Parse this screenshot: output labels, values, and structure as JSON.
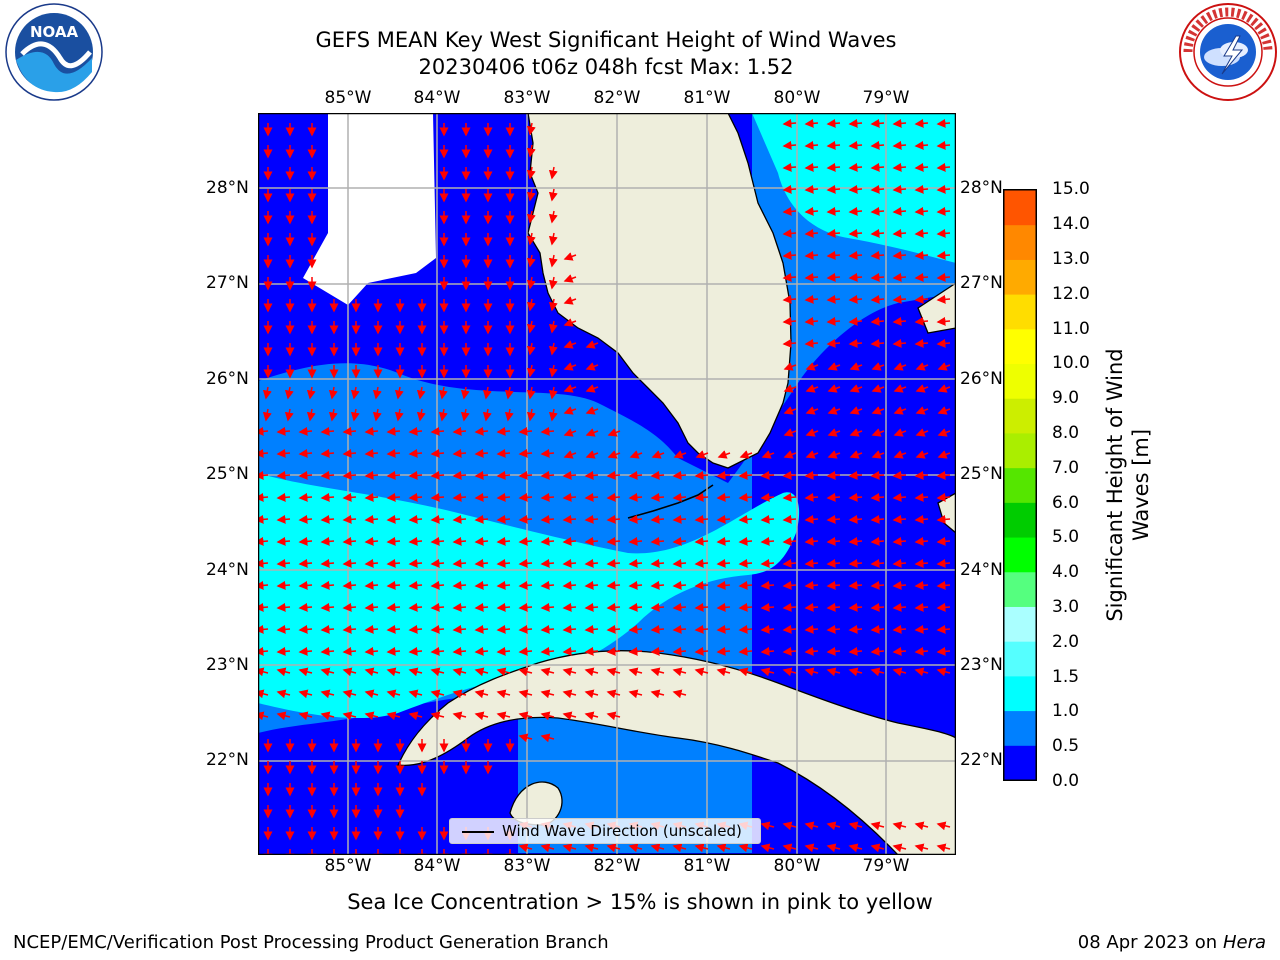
{
  "title_line1": "GEFS MEAN Key West Significant Height of Wind Waves",
  "title_line2": "20230406 t06z 048h fcst   Max: 1.52",
  "lon_labels": [
    "85°W",
    "84°W",
    "83°W",
    "82°W",
    "81°W",
    "80°W",
    "79°W"
  ],
  "lat_labels": [
    "28°N",
    "27°N",
    "26°N",
    "25°N",
    "24°N",
    "23°N",
    "22°N"
  ],
  "legend_label": "Wind Wave Direction (unscaled)",
  "colorbar": {
    "title_line1": "Significant Height of Wind",
    "title_line2": "Waves [m]",
    "ticks": [
      "15.0",
      "14.0",
      "13.0",
      "12.0",
      "11.0",
      "10.0",
      "9.0",
      "8.0",
      "7.0",
      "6.0",
      "5.0",
      "4.0",
      "3.0",
      "2.0",
      "1.5",
      "1.0",
      "0.5",
      "0.0"
    ],
    "colors": [
      "#0000ff",
      "#0080ff",
      "#00ffff",
      "#55ffff",
      "#aaffff",
      "#55ff7f",
      "#00ff00",
      "#00cc00",
      "#55e600",
      "#aaee00",
      "#ccee00",
      "#eeff00",
      "#ffff00",
      "#ffdd00",
      "#ffaa00",
      "#ff8800",
      "#ff5500",
      "#ff2200",
      "#ff0000"
    ]
  },
  "palette": {
    "dark_blue": "#0000ff",
    "mid_blue": "#0080ff",
    "cyan": "#00ffff",
    "land": "#eeeedc",
    "arrow": "#ff0000",
    "grid": "#b0b0b0"
  },
  "sea_ice_note": "Sea Ice Concentration > 15% is shown in pink to yellow",
  "footer_left": "NCEP/EMC/Verification Post Processing Product Generation Branch",
  "footer_date": "08 Apr 2023 on ",
  "footer_host": "Hera",
  "logos": {
    "noaa_text": "NOAA",
    "nws_text": "NATIONAL WEATHER SERVICE"
  }
}
